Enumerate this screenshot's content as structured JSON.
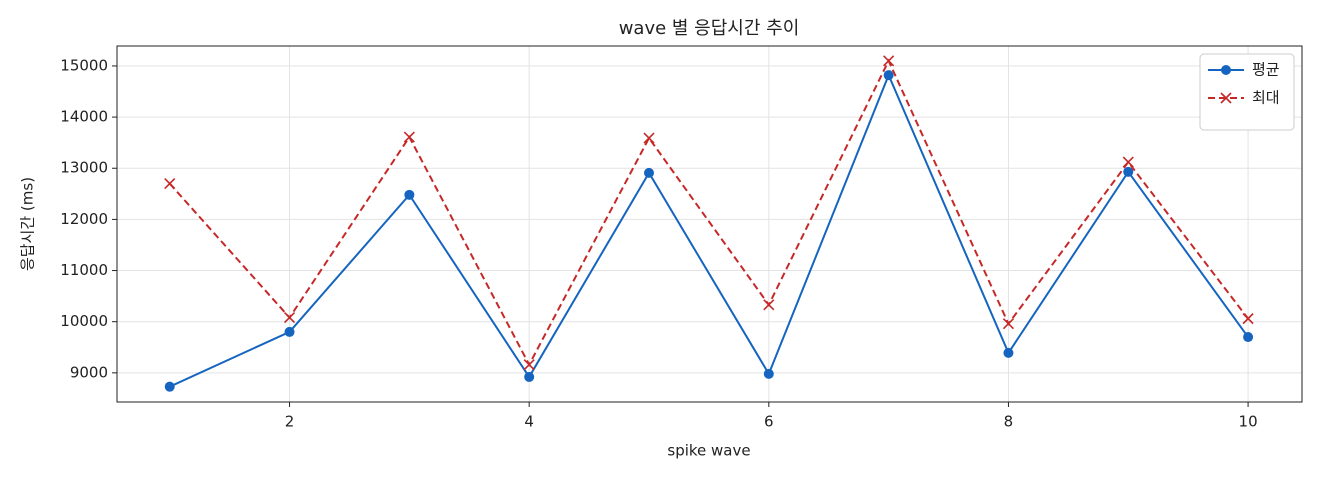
{
  "chart_data": {
    "type": "line",
    "title": "wave 별 응답시간 추이",
    "xlabel": "spike wave",
    "ylabel": "응답시간 (ms)",
    "x": [
      1,
      2,
      3,
      4,
      5,
      6,
      7,
      8,
      9,
      10
    ],
    "series": [
      {
        "name": "평균",
        "color": "#1565c0",
        "marker": "o",
        "linestyle": "solid",
        "values": [
          8730,
          9800,
          12480,
          8920,
          12910,
          8980,
          14820,
          9390,
          12930,
          9700
        ]
      },
      {
        "name": "최대",
        "color": "#c62828",
        "marker": "x",
        "linestyle": "dashed",
        "values": [
          12700,
          10080,
          13610,
          9160,
          13590,
          10330,
          15100,
          9960,
          13120,
          10060
        ]
      }
    ],
    "xlim": [
      0.56,
      10.45
    ],
    "ylim": [
      8430,
      15390
    ],
    "xticks": [
      2,
      4,
      6,
      8,
      10
    ],
    "yticks": [
      9000,
      10000,
      11000,
      12000,
      13000,
      14000,
      15000
    ],
    "grid": true,
    "legend": "upper right"
  }
}
